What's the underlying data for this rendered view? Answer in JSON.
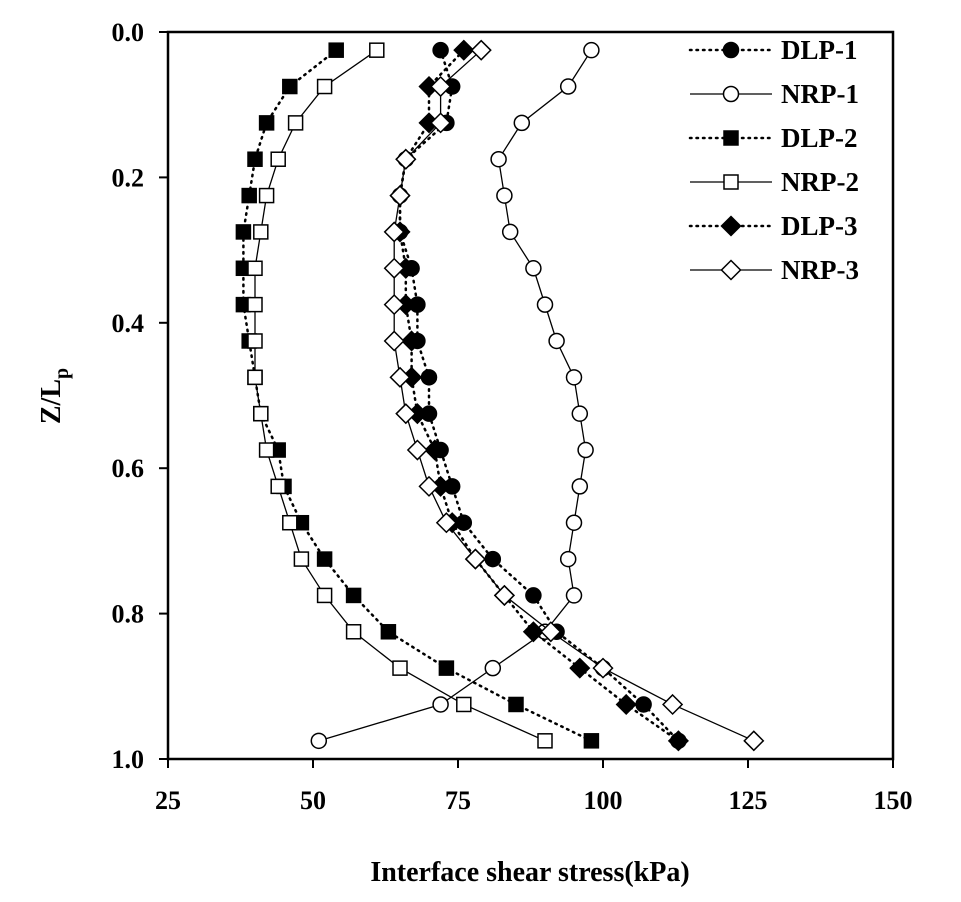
{
  "chart_data": {
    "type": "line",
    "xlabel": "Interface shear stress(kPa)",
    "ylabel": {
      "main": "Z/L",
      "sub": "p"
    },
    "xlim": [
      25,
      150
    ],
    "ylim": [
      0.0,
      1.0
    ],
    "y_inverted": true,
    "x_ticks": [
      "25",
      "50",
      "75",
      "100",
      "125",
      "150"
    ],
    "y_ticks": [
      "0.0",
      "0.2",
      "0.4",
      "0.6",
      "0.8",
      "1.0"
    ],
    "grid": false,
    "legend_position": "top-right",
    "series": [
      {
        "name": "DLP-1",
        "marker": "circle",
        "filled": true,
        "line": "dotted",
        "points": [
          [
            72,
            0.025
          ],
          [
            74,
            0.075
          ],
          [
            73,
            0.125
          ],
          [
            66,
            0.175
          ],
          [
            65,
            0.225
          ],
          [
            65,
            0.275
          ],
          [
            67,
            0.325
          ],
          [
            68,
            0.375
          ],
          [
            68,
            0.425
          ],
          [
            70,
            0.475
          ],
          [
            70,
            0.525
          ],
          [
            72,
            0.575
          ],
          [
            74,
            0.625
          ],
          [
            76,
            0.675
          ],
          [
            81,
            0.725
          ],
          [
            88,
            0.775
          ],
          [
            92,
            0.825
          ],
          [
            100,
            0.875
          ],
          [
            107,
            0.925
          ],
          [
            113,
            0.975
          ]
        ]
      },
      {
        "name": "NRP-1",
        "marker": "circle",
        "filled": false,
        "line": "solid",
        "points": [
          [
            98,
            0.025
          ],
          [
            94,
            0.075
          ],
          [
            86,
            0.125
          ],
          [
            82,
            0.175
          ],
          [
            83,
            0.225
          ],
          [
            84,
            0.275
          ],
          [
            88,
            0.325
          ],
          [
            90,
            0.375
          ],
          [
            92,
            0.425
          ],
          [
            95,
            0.475
          ],
          [
            96,
            0.525
          ],
          [
            97,
            0.575
          ],
          [
            96,
            0.625
          ],
          [
            95,
            0.675
          ],
          [
            94,
            0.725
          ],
          [
            95,
            0.775
          ],
          [
            90,
            0.825
          ],
          [
            81,
            0.875
          ],
          [
            72,
            0.925
          ],
          [
            51,
            0.975
          ]
        ]
      },
      {
        "name": "DLP-2",
        "marker": "square",
        "filled": true,
        "line": "dotted",
        "points": [
          [
            54,
            0.025
          ],
          [
            46,
            0.075
          ],
          [
            42,
            0.125
          ],
          [
            40,
            0.175
          ],
          [
            39,
            0.225
          ],
          [
            38,
            0.275
          ],
          [
            38,
            0.325
          ],
          [
            38,
            0.375
          ],
          [
            39,
            0.425
          ],
          [
            40,
            0.475
          ],
          [
            41,
            0.525
          ],
          [
            44,
            0.575
          ],
          [
            45,
            0.625
          ],
          [
            48,
            0.675
          ],
          [
            52,
            0.725
          ],
          [
            57,
            0.775
          ],
          [
            63,
            0.825
          ],
          [
            73,
            0.875
          ],
          [
            85,
            0.925
          ],
          [
            98,
            0.975
          ]
        ]
      },
      {
        "name": "NRP-2",
        "marker": "square",
        "filled": false,
        "line": "solid",
        "points": [
          [
            61,
            0.025
          ],
          [
            52,
            0.075
          ],
          [
            47,
            0.125
          ],
          [
            44,
            0.175
          ],
          [
            42,
            0.225
          ],
          [
            41,
            0.275
          ],
          [
            40,
            0.325
          ],
          [
            40,
            0.375
          ],
          [
            40,
            0.425
          ],
          [
            40,
            0.475
          ],
          [
            41,
            0.525
          ],
          [
            42,
            0.575
          ],
          [
            44,
            0.625
          ],
          [
            46,
            0.675
          ],
          [
            48,
            0.725
          ],
          [
            52,
            0.775
          ],
          [
            57,
            0.825
          ],
          [
            65,
            0.875
          ],
          [
            76,
            0.925
          ],
          [
            90,
            0.975
          ]
        ]
      },
      {
        "name": "DLP-3",
        "marker": "diamond",
        "filled": true,
        "line": "dotted",
        "points": [
          [
            76,
            0.025
          ],
          [
            70,
            0.075
          ],
          [
            70,
            0.125
          ],
          [
            66,
            0.175
          ],
          [
            65,
            0.225
          ],
          [
            65,
            0.275
          ],
          [
            66,
            0.325
          ],
          [
            66,
            0.375
          ],
          [
            67,
            0.425
          ],
          [
            67,
            0.475
          ],
          [
            68,
            0.525
          ],
          [
            71,
            0.575
          ],
          [
            72,
            0.625
          ],
          [
            74,
            0.675
          ],
          [
            78,
            0.725
          ],
          [
            83,
            0.775
          ],
          [
            88,
            0.825
          ],
          [
            96,
            0.875
          ],
          [
            104,
            0.925
          ],
          [
            113,
            0.975
          ]
        ]
      },
      {
        "name": "NRP-3",
        "marker": "diamond",
        "filled": false,
        "line": "solid",
        "points": [
          [
            79,
            0.025
          ],
          [
            72,
            0.075
          ],
          [
            72,
            0.125
          ],
          [
            66,
            0.175
          ],
          [
            65,
            0.225
          ],
          [
            64,
            0.275
          ],
          [
            64,
            0.325
          ],
          [
            64,
            0.375
          ],
          [
            64,
            0.425
          ],
          [
            65,
            0.475
          ],
          [
            66,
            0.525
          ],
          [
            68,
            0.575
          ],
          [
            70,
            0.625
          ],
          [
            73,
            0.675
          ],
          [
            78,
            0.725
          ],
          [
            83,
            0.775
          ],
          [
            91,
            0.825
          ],
          [
            100,
            0.875
          ],
          [
            112,
            0.925
          ],
          [
            126,
            0.975
          ]
        ]
      }
    ]
  }
}
